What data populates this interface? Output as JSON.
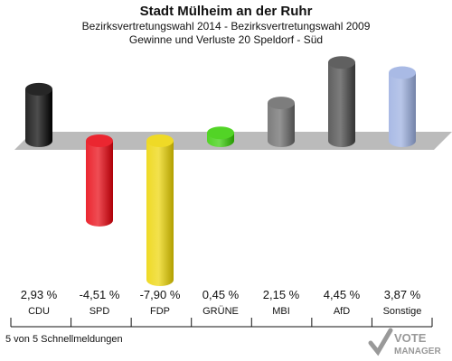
{
  "header": {
    "title": "Stadt Mülheim an der Ruhr",
    "subtitle1": "Bezirksvertretungswahl 2014 - Bezirksvertretungswahl 2009",
    "subtitle2": "Gewinne und Verluste 20 Speldorf - Süd"
  },
  "chart_data": {
    "type": "bar",
    "categories": [
      "CDU",
      "SPD",
      "FDP",
      "GRÜNE",
      "MBI",
      "AfD",
      "Sonstige"
    ],
    "values": [
      2.93,
      -4.51,
      -7.9,
      0.45,
      2.15,
      4.45,
      3.87
    ],
    "value_labels": [
      "2,93 %",
      "-4,51 %",
      "-7,90 %",
      "0,45 %",
      "2,15 %",
      "4,45 %",
      "3,87 %"
    ],
    "colors": [
      "#000000",
      "#e8000b",
      "#ecd400",
      "#33cc00",
      "#666666",
      "#444444",
      "#9aaee0"
    ],
    "ylim": [
      -8,
      5
    ],
    "grid": false
  },
  "footer": {
    "note": "5 von 5 Schnellmeldungen",
    "logo_text1": "VOTE",
    "logo_text2": "MANAGER"
  }
}
